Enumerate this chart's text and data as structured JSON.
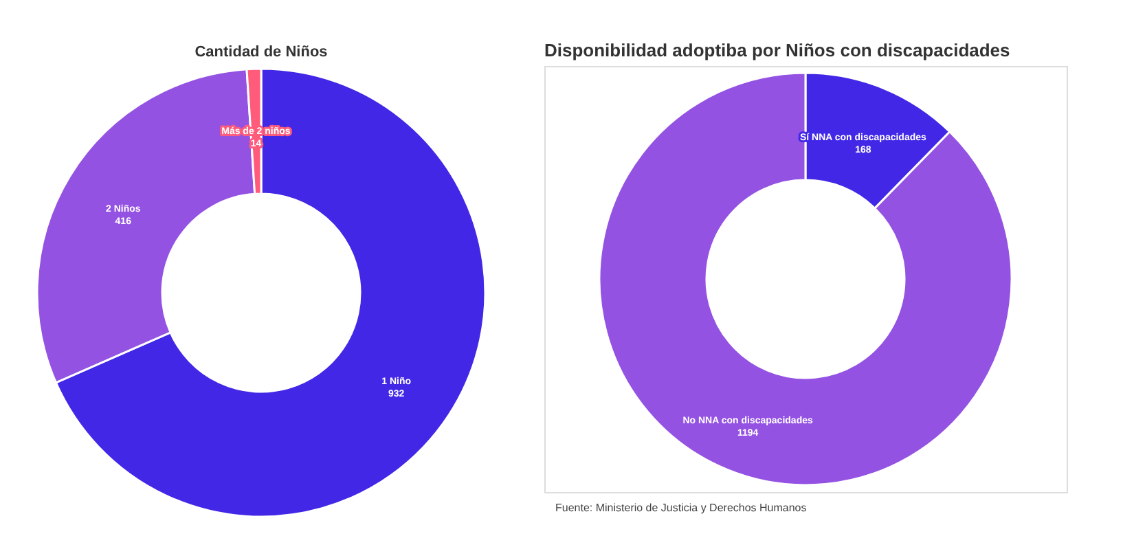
{
  "chart_data": [
    {
      "type": "donut",
      "title": "Cantidad de Niños",
      "categories": [
        "1 Niño",
        "2 Niños",
        "Más de 2 niños"
      ],
      "values": [
        932,
        416,
        14
      ],
      "colors": [
        "#4228e6",
        "#9452e3",
        "#ff5c7c"
      ],
      "data_labels": true
    },
    {
      "type": "donut",
      "title": "Disponibilidad adoptiba por Niños con discapacidades",
      "categories": [
        "Sí NNA con discapacidades",
        "No NNA con discapacidades"
      ],
      "values": [
        168,
        1194
      ],
      "colors": [
        "#4228e6",
        "#9452e3"
      ],
      "data_labels": true,
      "annotations": [
        "Fuente: Ministerio de Justicia y Derechos Humanos"
      ]
    }
  ]
}
